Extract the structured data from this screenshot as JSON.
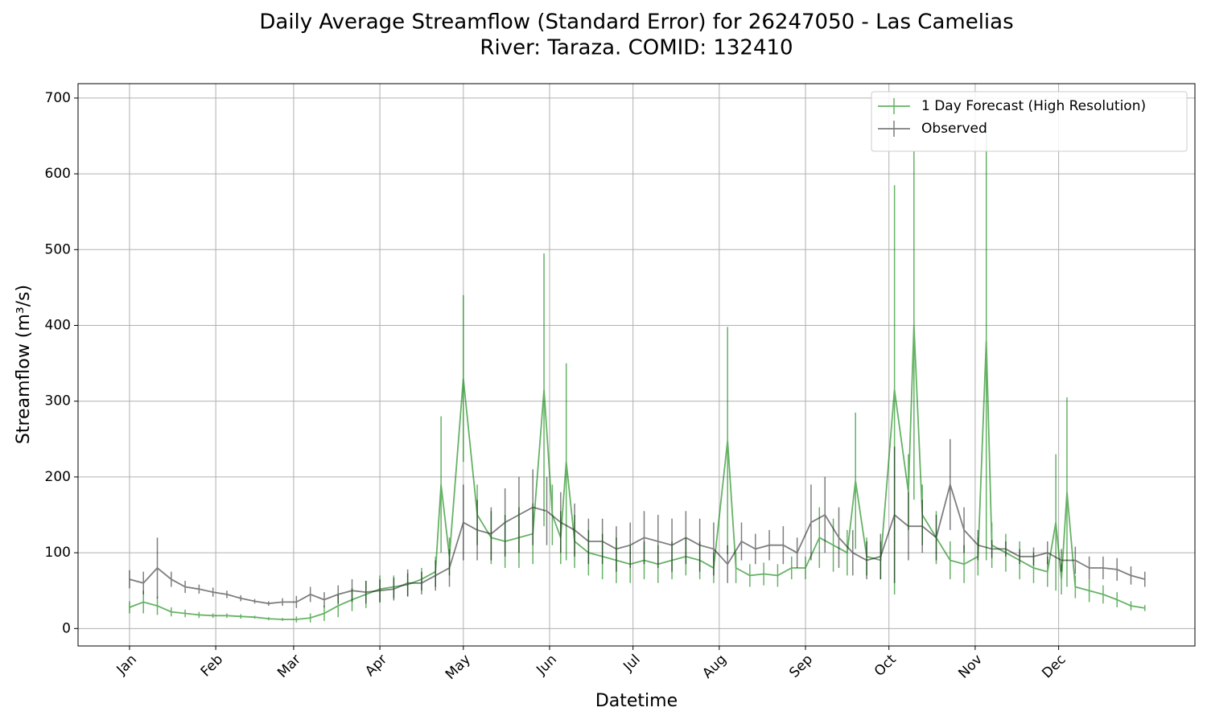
{
  "chart_data": {
    "type": "errorbar-line",
    "title": "Daily Average Streamflow (Standard Error) for 26247050 - Las Camelias",
    "subtitle": "River: Taraza. COMID: 132410",
    "x_label": "Datetime",
    "y_label": "Streamflow (m³/s)",
    "xlim": [
      -17.5,
      384
    ],
    "ylim": [
      -23,
      719
    ],
    "xticks": [
      {
        "value": 1,
        "label": "Jan"
      },
      {
        "value": 32,
        "label": "Feb"
      },
      {
        "value": 60,
        "label": "Mar"
      },
      {
        "value": 91,
        "label": "Apr"
      },
      {
        "value": 121,
        "label": "May"
      },
      {
        "value": 152,
        "label": "Jun"
      },
      {
        "value": 182,
        "label": "Jul"
      },
      {
        "value": 213,
        "label": "Aug"
      },
      {
        "value": 244,
        "label": "Sep"
      },
      {
        "value": 274,
        "label": "Oct"
      },
      {
        "value": 305,
        "label": "Nov"
      },
      {
        "value": 335,
        "label": "Dec"
      }
    ],
    "yticks": [
      0,
      100,
      200,
      300,
      400,
      500,
      600,
      700
    ],
    "grid": true,
    "legend": "upper-right",
    "series": [
      {
        "name": "1 Day Forecast (High Resolution)",
        "color": "green",
        "x": [
          1,
          6,
          11,
          16,
          21,
          26,
          31,
          36,
          41,
          46,
          51,
          56,
          61,
          66,
          71,
          76,
          81,
          86,
          91,
          96,
          101,
          106,
          111,
          113,
          116,
          121,
          126,
          131,
          136,
          141,
          146,
          150,
          153,
          156,
          158,
          161,
          166,
          171,
          176,
          181,
          186,
          191,
          196,
          201,
          206,
          211,
          216,
          219,
          224,
          229,
          234,
          239,
          244,
          249,
          254,
          259,
          262,
          266,
          271,
          276,
          281,
          283,
          286,
          291,
          296,
          301,
          306,
          309,
          311,
          316,
          321,
          326,
          331,
          334,
          336,
          338,
          341,
          346,
          351,
          356,
          361,
          366
        ],
        "values": [
          28,
          35,
          30,
          22,
          20,
          18,
          17,
          17,
          16,
          15,
          13,
          12,
          12,
          14,
          20,
          30,
          38,
          45,
          52,
          55,
          58,
          65,
          75,
          190,
          95,
          330,
          150,
          120,
          115,
          120,
          125,
          315,
          150,
          120,
          220,
          115,
          100,
          95,
          90,
          85,
          90,
          85,
          90,
          95,
          90,
          80,
          248,
          80,
          70,
          72,
          70,
          80,
          80,
          120,
          110,
          100,
          195,
          95,
          90,
          315,
          180,
          400,
          150,
          120,
          90,
          85,
          95,
          380,
          110,
          100,
          90,
          80,
          75,
          140,
          65,
          180,
          55,
          50,
          45,
          38,
          30,
          27
        ],
        "errors": [
          8,
          15,
          12,
          6,
          5,
          4,
          3,
          3,
          3,
          2,
          2,
          2,
          4,
          6,
          10,
          15,
          15,
          18,
          18,
          15,
          15,
          15,
          20,
          90,
          25,
          110,
          40,
          35,
          35,
          40,
          40,
          180,
          40,
          35,
          130,
          35,
          30,
          30,
          30,
          25,
          25,
          25,
          25,
          25,
          25,
          20,
          150,
          20,
          15,
          15,
          15,
          15,
          15,
          40,
          35,
          30,
          90,
          25,
          25,
          270,
          50,
          230,
          40,
          35,
          25,
          25,
          25,
          290,
          30,
          25,
          25,
          20,
          20,
          90,
          20,
          125,
          15,
          15,
          12,
          10,
          6,
          4
        ]
      },
      {
        "name": "Observed",
        "color": "black",
        "x": [
          1,
          6,
          11,
          16,
          21,
          26,
          31,
          36,
          41,
          46,
          51,
          56,
          61,
          66,
          71,
          76,
          81,
          86,
          91,
          96,
          101,
          106,
          111,
          116,
          121,
          126,
          131,
          136,
          141,
          146,
          151,
          156,
          161,
          166,
          171,
          176,
          181,
          186,
          191,
          196,
          201,
          206,
          211,
          216,
          221,
          226,
          231,
          236,
          241,
          246,
          251,
          256,
          261,
          266,
          271,
          276,
          281,
          286,
          291,
          296,
          301,
          306,
          311,
          316,
          321,
          326,
          331,
          336,
          341,
          346,
          351,
          356,
          361,
          366
        ],
        "values": [
          65,
          60,
          80,
          65,
          55,
          52,
          48,
          45,
          40,
          36,
          33,
          35,
          35,
          45,
          38,
          45,
          50,
          48,
          50,
          52,
          60,
          60,
          70,
          80,
          140,
          130,
          125,
          140,
          150,
          160,
          155,
          140,
          130,
          115,
          115,
          105,
          110,
          120,
          115,
          110,
          120,
          110,
          105,
          85,
          115,
          105,
          110,
          110,
          100,
          140,
          150,
          120,
          100,
          90,
          95,
          150,
          135,
          135,
          120,
          190,
          130,
          110,
          105,
          105,
          95,
          95,
          100,
          90,
          90,
          80,
          80,
          78,
          70,
          65
        ],
        "errors": [
          12,
          15,
          40,
          10,
          8,
          6,
          6,
          5,
          4,
          3,
          3,
          5,
          8,
          10,
          10,
          12,
          15,
          15,
          15,
          15,
          18,
          15,
          20,
          25,
          50,
          40,
          35,
          45,
          50,
          50,
          45,
          40,
          35,
          30,
          30,
          30,
          30,
          35,
          35,
          35,
          35,
          35,
          35,
          25,
          25,
          20,
          20,
          25,
          20,
          50,
          50,
          40,
          30,
          25,
          30,
          90,
          45,
          35,
          30,
          60,
          30,
          20,
          12,
          10,
          10,
          12,
          15,
          15,
          18,
          15,
          15,
          15,
          12,
          10
        ]
      }
    ]
  }
}
